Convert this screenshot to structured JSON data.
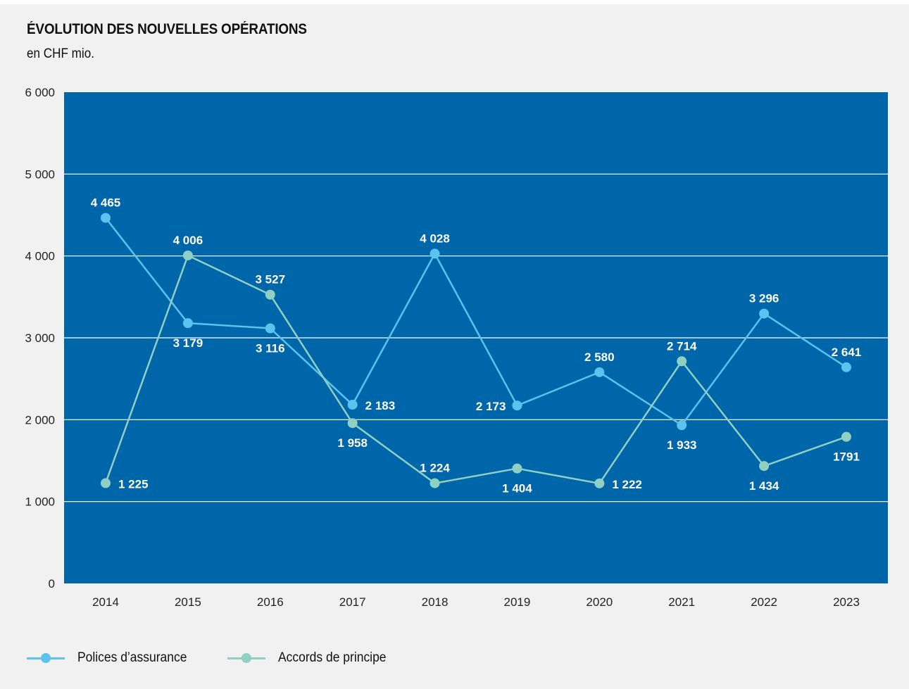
{
  "chart_data": {
    "type": "line",
    "title": "ÉVOLUTION DES NOUVELLES OPÉRATIONS",
    "subtitle": "en CHF mio.",
    "categories": [
      "2014",
      "2015",
      "2016",
      "2017",
      "2018",
      "2019",
      "2020",
      "2021",
      "2022",
      "2023"
    ],
    "ylim": [
      0,
      6000
    ],
    "yticks": [
      0,
      1000,
      2000,
      3000,
      4000,
      5000,
      6000
    ],
    "ytick_labels": [
      "0",
      "1 000",
      "2 000",
      "3 000",
      "4 000",
      "5 000",
      "6 000"
    ],
    "grid": true,
    "legend_position": "bottom-left",
    "series": [
      {
        "name": "Polices d’assurance",
        "color": "#5bc3ee",
        "values": [
          4465,
          3179,
          3116,
          2183,
          4028,
          2173,
          2580,
          1933,
          3296,
          2641
        ],
        "labels": [
          "4 465",
          "3 179",
          "3 116",
          "2 183",
          "4 028",
          "2 173",
          "2 580",
          "1 933",
          "3 296",
          "2 641"
        ]
      },
      {
        "name": "Accords de principe",
        "color": "#8fd0c3",
        "values": [
          1225,
          4006,
          3527,
          1958,
          1224,
          1404,
          1222,
          2714,
          1434,
          1791
        ],
        "labels": [
          "1 225",
          "4 006",
          "3 527",
          "1 958",
          "1 224",
          "1 404",
          "1 222",
          "2 714",
          "1 434",
          "1791"
        ]
      }
    ],
    "plot_background": "#0066aa",
    "gridline_color": "#ffffff"
  }
}
